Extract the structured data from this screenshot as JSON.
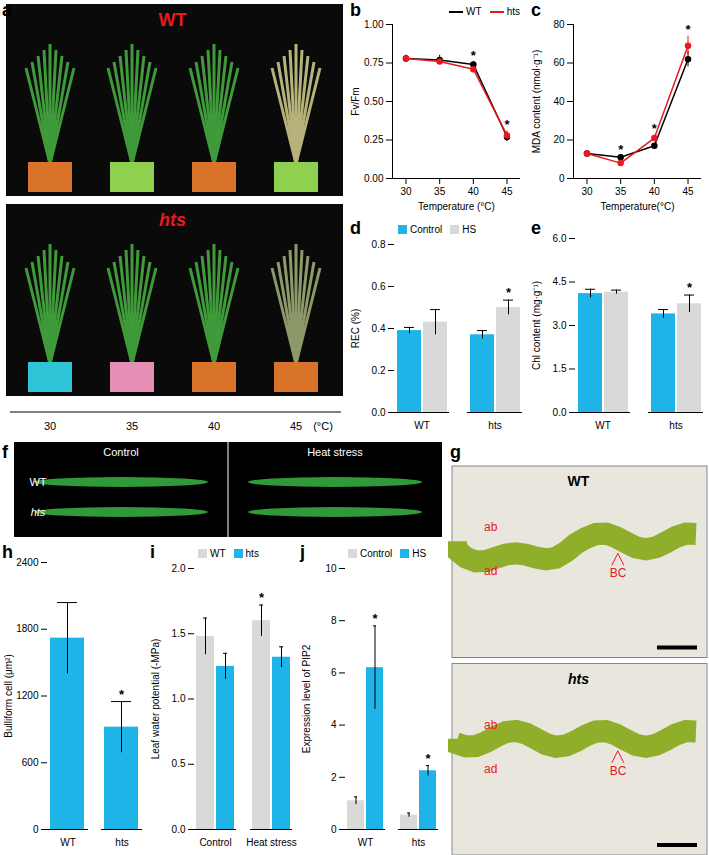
{
  "chart_data": [
    {
      "panel": "b",
      "type": "line",
      "xlabel": "Temperature (°C)",
      "ylabel": "Fv/Fm",
      "x": [
        30,
        35,
        40,
        45
      ],
      "xlim": [
        28,
        47
      ],
      "xticks": [
        30,
        35,
        40,
        45
      ],
      "ylim": [
        0,
        1
      ],
      "yticks": [
        {
          "value": 0,
          "label": "0.00"
        },
        0.25,
        {
          "value": 0.5,
          "label": "0.50"
        },
        0.75,
        {
          "value": 1,
          "label": "1.00"
        }
      ],
      "legend": "top-right",
      "significance": [
        null,
        null,
        "*",
        "*"
      ],
      "series": [
        {
          "name": "WT",
          "color": "#000000",
          "marker": "circle",
          "values": [
            0.78,
            0.77,
            0.74,
            0.27
          ],
          "errors": [
            0.02,
            0.03,
            0.02,
            0.03
          ]
        },
        {
          "name": "hts",
          "color": "#e8191f",
          "marker": "circle",
          "values": [
            0.78,
            0.76,
            0.71,
            0.28
          ],
          "errors": [
            0.02,
            0.02,
            0.02,
            0.03
          ]
        }
      ]
    },
    {
      "panel": "c",
      "type": "line",
      "xlabel": "Temperature(°C)",
      "ylabel": "MDA content (nmol·g⁻¹)",
      "x": [
        30,
        35,
        40,
        45
      ],
      "xlim": [
        28,
        47
      ],
      "xticks": [
        30,
        35,
        40,
        45
      ],
      "ylim": [
        0,
        80
      ],
      "yticks": [
        0,
        20,
        40,
        60,
        80
      ],
      "legend": "none",
      "significance": [
        null,
        "*",
        "*",
        "*"
      ],
      "series": [
        {
          "name": "WT",
          "color": "#000000",
          "marker": "circle",
          "values": [
            13,
            11,
            17,
            62
          ],
          "errors": [
            1,
            1,
            1,
            4
          ]
        },
        {
          "name": "hts",
          "color": "#e8191f",
          "marker": "circle",
          "values": [
            13,
            8,
            21,
            69
          ],
          "errors": [
            1,
            1,
            1.5,
            5
          ]
        }
      ]
    },
    {
      "panel": "d",
      "type": "grouped_bar",
      "ylabel": "REC (%)",
      "categories": [
        "WT",
        "hts"
      ],
      "ylim": [
        0,
        0.8
      ],
      "yticks": [
        {
          "value": 0,
          "label": "0.0"
        },
        0.2,
        0.4,
        0.6,
        0.8
      ],
      "legend": "top-left",
      "series": [
        {
          "name": "Control",
          "color": "#1eb4e8",
          "values": [
            0.39,
            0.37
          ],
          "errors": [
            0.015,
            0.02
          ],
          "significance": [
            null,
            null
          ]
        },
        {
          "name": "HS",
          "color": "#d9d9d9",
          "values": [
            0.43,
            0.5
          ],
          "errors": [
            0.06,
            0.035
          ],
          "significance": [
            null,
            "*"
          ]
        }
      ]
    },
    {
      "panel": "e",
      "type": "grouped_bar",
      "ylabel": "Chl content (mg·g⁻¹)",
      "categories": [
        "WT",
        "hts"
      ],
      "ylim": [
        0,
        6
      ],
      "yticks": [
        {
          "value": 0,
          "label": "0.0"
        },
        1.5,
        {
          "value": 3,
          "label": "3.0"
        },
        4.5,
        {
          "value": 6,
          "label": "6.0"
        }
      ],
      "legend": "none",
      "series": [
        {
          "name": "Control",
          "color": "#1eb4e8",
          "values": [
            4.1,
            3.4
          ],
          "errors": [
            0.15,
            0.15
          ],
          "significance": [
            null,
            null
          ]
        },
        {
          "name": "HS",
          "color": "#d9d9d9",
          "values": [
            4.15,
            3.75
          ],
          "errors": [
            0.07,
            0.3
          ],
          "significance": [
            null,
            "*"
          ]
        }
      ]
    },
    {
      "panel": "h",
      "type": "bar",
      "ylabel": "Bulliform cell (μm²)",
      "categories": [
        "WT",
        "hts"
      ],
      "values": [
        1720,
        920
      ],
      "errors": [
        320,
        230
      ],
      "significance": [
        null,
        "*"
      ],
      "color": "#1eb4e8",
      "ylim": [
        0,
        2400
      ],
      "yticks": [
        0,
        600,
        1200,
        1800,
        2400
      ]
    },
    {
      "panel": "i",
      "type": "grouped_bar",
      "ylabel": "Leaf water potential (-MPa)",
      "categories": [
        "Control",
        "Heat stress"
      ],
      "ylim": [
        0,
        2
      ],
      "yticks": [
        {
          "value": 0,
          "label": "0.0"
        },
        0.5,
        {
          "value": 1,
          "label": "1.0"
        },
        1.5,
        {
          "value": 2,
          "label": "2.0"
        }
      ],
      "legend": "top-left",
      "series": [
        {
          "name": "WT",
          "color": "#d9d9d9",
          "values": [
            1.48,
            1.6
          ],
          "errors": [
            0.14,
            0.12
          ],
          "significance": [
            null,
            "*"
          ]
        },
        {
          "name": "hts",
          "color": "#1eb4e8",
          "values": [
            1.25,
            1.32
          ],
          "errors": [
            0.1,
            0.08
          ],
          "significance": [
            null,
            null
          ]
        }
      ]
    },
    {
      "panel": "j",
      "type": "grouped_bar",
      "ylabel": "Expression level of PIP2",
      "categories": [
        "WT",
        "hts"
      ],
      "ylim": [
        0,
        10
      ],
      "yticks": [
        0,
        2,
        4,
        6,
        8,
        10
      ],
      "legend": "top-left",
      "series": [
        {
          "name": "Control",
          "color": "#d9d9d9",
          "values": [
            1.1,
            0.55
          ],
          "errors": [
            0.15,
            0.08
          ],
          "significance": [
            null,
            null
          ]
        },
        {
          "name": "HS",
          "color": "#1eb4e8",
          "values": [
            6.2,
            2.25
          ],
          "errors": [
            1.6,
            0.2
          ],
          "significance": [
            "*",
            "*"
          ]
        }
      ]
    }
  ],
  "image_panels": {
    "a": {
      "panel": "a",
      "rows": [
        "WT",
        "hts"
      ],
      "label_color": "#e8191f",
      "x_labels": [
        "30",
        "35",
        "40",
        "45",
        "(°C)"
      ]
    },
    "f": {
      "panel": "f",
      "columns": [
        "Control",
        "Heat stress"
      ],
      "rows": [
        "WT",
        "hts"
      ]
    },
    "g": {
      "panel": "g",
      "rows": [
        "WT",
        "hts"
      ],
      "annotations": [
        "ab",
        "ad",
        "BC"
      ],
      "annotation_color": "#e8191f"
    }
  }
}
